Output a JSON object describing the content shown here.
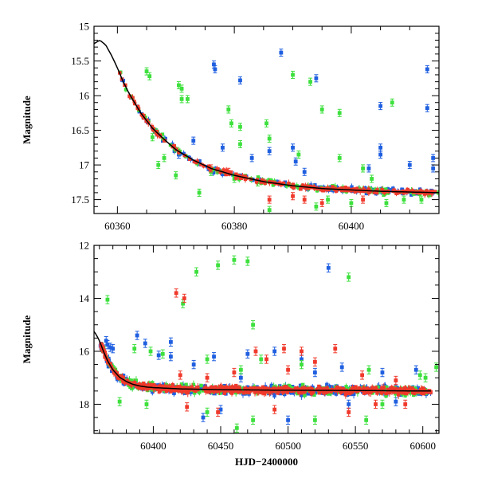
{
  "colors": {
    "blue": "#1f5fe0",
    "green": "#3de03d",
    "red": "#f0392b",
    "model": "#000000"
  },
  "chart_data": [
    {
      "type": "scatter",
      "title": "",
      "xlabel": "",
      "ylabel": "Magnitude",
      "xlim": [
        60356,
        60415
      ],
      "ylim": [
        17.7,
        15.0
      ],
      "y_inverted": true,
      "x_ticks": [
        60360,
        60380,
        60400
      ],
      "y_ticks": [
        15,
        15.5,
        16,
        16.5,
        17,
        17.5
      ],
      "y_tick_labels": [
        "15",
        "15.5",
        "16",
        "16.5",
        "17",
        "17.5"
      ],
      "model_curve": {
        "x": [
          60356,
          60357,
          60358,
          60359,
          60360,
          60361,
          60362,
          60364,
          60366,
          60368,
          60370,
          60373,
          60376,
          60380,
          60385,
          60390,
          60395,
          60400,
          60405,
          60410,
          60415
        ],
        "y": [
          15.25,
          15.2,
          15.27,
          15.42,
          15.6,
          15.8,
          15.97,
          16.25,
          16.47,
          16.63,
          16.78,
          16.93,
          17.05,
          17.15,
          17.24,
          17.3,
          17.34,
          17.36,
          17.38,
          17.39,
          17.4
        ]
      },
      "series": [
        {
          "name": "",
          "color": "blue",
          "outliers": [
            [
              60376.5,
              15.55
            ],
            [
              60376.7,
              15.62
            ],
            [
              60381,
              15.78
            ],
            [
              60388,
              15.38
            ],
            [
              60390,
              16.75
            ],
            [
              60390.5,
              16.95
            ],
            [
              60394,
              15.75
            ],
            [
              60405,
              16.15
            ],
            [
              60405,
              16.75
            ],
            [
              60405,
              16.85
            ],
            [
              60413,
              15.62
            ],
            [
              60413,
              16.18
            ],
            [
              60414,
              16.9
            ],
            [
              60414,
              17.05
            ],
            [
              60370.5,
              16.85
            ],
            [
              60373,
              16.65
            ],
            [
              60378,
              16.75
            ],
            [
              60383,
              16.9
            ],
            [
              60386,
              16.8
            ],
            [
              60392,
              17.1
            ],
            [
              60403,
              17.05
            ],
            [
              60410,
              17.0
            ]
          ]
        },
        {
          "name": "",
          "color": "green",
          "outliers": [
            [
              60365,
              15.65
            ],
            [
              60365.5,
              15.72
            ],
            [
              60370.5,
              15.85
            ],
            [
              60371,
              15.9
            ],
            [
              60371,
              16.05
            ],
            [
              60372,
              16.05
            ],
            [
              60379,
              16.2
            ],
            [
              60379.5,
              16.4
            ],
            [
              60381,
              16.45
            ],
            [
              60381,
              16.7
            ],
            [
              60386,
              16.62
            ],
            [
              60385.5,
              16.4
            ],
            [
              60390,
              15.7
            ],
            [
              60391,
              16.85
            ],
            [
              60393,
              15.8
            ],
            [
              60395,
              16.2
            ],
            [
              60398,
              16.25
            ],
            [
              60398,
              16.9
            ],
            [
              60402,
              17.05
            ],
            [
              60403.5,
              17.2
            ],
            [
              60407,
              16.1
            ],
            [
              60370,
              17.15
            ],
            [
              60374,
              17.4
            ],
            [
              60376,
              17.1
            ],
            [
              60380,
              17.2
            ],
            [
              60384,
              17.25
            ],
            [
              60386,
              17.65
            ],
            [
              60394,
              17.6
            ],
            [
              60396,
              17.5
            ],
            [
              60400,
              17.55
            ],
            [
              60406,
              17.55
            ],
            [
              60409,
              17.5
            ],
            [
              60412,
              17.5
            ],
            [
              60366,
              16.6
            ],
            [
              60368,
              16.9
            ],
            [
              60367,
              17.0
            ]
          ]
        },
        {
          "name": "",
          "color": "red",
          "outliers": [
            [
              60376,
              17.05
            ],
            [
              60379,
              17.1
            ],
            [
              60386,
              17.5
            ],
            [
              60390,
              17.45
            ],
            [
              60392,
              17.5
            ],
            [
              60395,
              17.55
            ],
            [
              60402,
              17.5
            ]
          ]
        }
      ]
    },
    {
      "type": "scatter",
      "title": "",
      "xlabel": "HJD−2400000",
      "ylabel": "Magnitude",
      "xlim": [
        60356,
        60612
      ],
      "ylim": [
        19.1,
        12.0
      ],
      "y_inverted": true,
      "x_ticks": [
        60400,
        60450,
        60500,
        60550,
        60600
      ],
      "y_ticks": [
        12,
        14,
        16,
        18
      ],
      "y_tick_labels": [
        "12",
        "14",
        "16",
        "18"
      ],
      "model_curve": {
        "x": [
          60356,
          60358,
          60360,
          60363,
          60366,
          60370,
          60375,
          60380,
          60385,
          60390,
          60395,
          60400,
          60420,
          60450,
          60500,
          60550,
          60600,
          60606
        ],
        "y": [
          15.25,
          15.4,
          15.6,
          16.0,
          16.35,
          16.7,
          16.98,
          17.14,
          17.25,
          17.31,
          17.35,
          17.37,
          17.42,
          17.45,
          17.47,
          17.48,
          17.5,
          17.5
        ]
      },
      "series": [
        {
          "name": "",
          "color": "blue",
          "outliers": [
            [
              60365,
              15.6
            ],
            [
              60366,
              15.75
            ],
            [
              60368,
              15.85
            ],
            [
              60370,
              15.9
            ],
            [
              60388,
              15.4
            ],
            [
              60394,
              15.7
            ],
            [
              60404,
              16.15
            ],
            [
              60413,
              15.65
            ],
            [
              60413,
              16.2
            ],
            [
              60430,
              16.5
            ],
            [
              60445,
              16.2
            ],
            [
              60470,
              16.1
            ],
            [
              60490,
              16.0
            ],
            [
              60510,
              16.3
            ],
            [
              60530,
              12.85
            ],
            [
              60540,
              16.6
            ],
            [
              60570,
              16.8
            ],
            [
              60595,
              16.7
            ],
            [
              60437,
              18.5
            ],
            [
              60500,
              18.6
            ],
            [
              60465,
              17.0
            ],
            [
              60520,
              16.8
            ],
            [
              60450,
              18.2
            ],
            [
              60545,
              18.0
            ],
            [
              60580,
              17.9
            ]
          ]
        },
        {
          "name": "",
          "color": "green",
          "outliers": [
            [
              60366,
              14.05
            ],
            [
              60432,
              13.0
            ],
            [
              60448,
              12.75
            ],
            [
              60460,
              12.55
            ],
            [
              60470,
              12.6
            ],
            [
              60545,
              13.2
            ],
            [
              60422,
              14.2
            ],
            [
              60474,
              15.0
            ],
            [
              60386,
              15.9
            ],
            [
              60398,
              16.0
            ],
            [
              60407,
              16.1
            ],
            [
              60440,
              16.3
            ],
            [
              60465,
              16.7
            ],
            [
              60480,
              16.3
            ],
            [
              60510,
              16.5
            ],
            [
              60560,
              16.7
            ],
            [
              60598,
              16.9
            ],
            [
              60375,
              17.9
            ],
            [
              60395,
              18.0
            ],
            [
              60440,
              18.3
            ],
            [
              60462,
              18.9
            ],
            [
              60474,
              18.6
            ],
            [
              60520,
              18.6
            ],
            [
              60558,
              18.6
            ],
            [
              60570,
              18.0
            ],
            [
              60610,
              16.6
            ],
            [
              60602,
              17.0
            ]
          ]
        },
        {
          "name": "",
          "color": "red",
          "outliers": [
            [
              60417,
              13.8
            ],
            [
              60423,
              14.0
            ],
            [
              60476,
              16.0
            ],
            [
              60484,
              16.3
            ],
            [
              60497,
              15.9
            ],
            [
              60500,
              16.7
            ],
            [
              60510,
              16.0
            ],
            [
              60520,
              16.4
            ],
            [
              60535,
              15.9
            ],
            [
              60420,
              16.9
            ],
            [
              60440,
              17.0
            ],
            [
              60460,
              16.8
            ],
            [
              60555,
              16.9
            ],
            [
              60580,
              17.1
            ],
            [
              60425,
              18.1
            ],
            [
              60448,
              18.3
            ],
            [
              60490,
              18.2
            ],
            [
              60545,
              18.3
            ],
            [
              60565,
              18.0
            ],
            [
              60587,
              18.0
            ]
          ]
        }
      ]
    }
  ]
}
